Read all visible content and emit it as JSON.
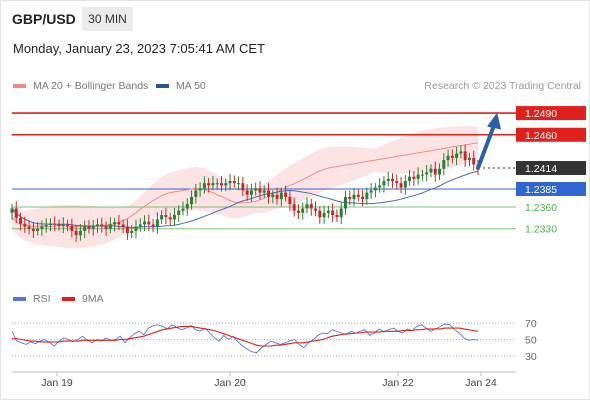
{
  "header": {
    "pair": "GBP/USD",
    "timeframe": "30 MIN",
    "datetime": "Monday, January 23, 2023 7:05:41 AM CET"
  },
  "legend": {
    "ma20": "MA 20 + Bollinger Bands",
    "ma50": "MA 50",
    "rsi": "RSI",
    "ma9": "9MA"
  },
  "credit": "Research © 2023 Trading Central",
  "colors": {
    "resistance": "#e0201c",
    "support": "#4caf50",
    "current": "#333333",
    "pivot": "#2f66d0",
    "bollinger_fill": "#fde4e4",
    "ma20": "#f08a8a",
    "ma50": "#4a69b8",
    "arrow": "#2d5fa6",
    "rsi": "#5878d6",
    "rsi_ma": "#e0201c",
    "candle_up": "#2e7d32",
    "candle_down": "#c62828"
  },
  "chart_data": [
    {
      "type": "candlestick",
      "ylim": [
        1.2266,
        1.2515
      ],
      "x_ticks": [
        "Jan 19",
        "Jan 20",
        "Jan 22",
        "Jan 24"
      ],
      "levels": [
        {
          "value": 1.249,
          "label": "1.2490",
          "kind": "resistance"
        },
        {
          "value": 1.246,
          "label": "1.2460",
          "kind": "resistance"
        },
        {
          "value": 1.2414,
          "label": "1.2414",
          "kind": "current"
        },
        {
          "value": 1.2385,
          "label": "1.2385",
          "kind": "pivot"
        },
        {
          "value": 1.236,
          "label": "1.2360",
          "kind": "support"
        },
        {
          "value": 1.233,
          "label": "1.2330",
          "kind": "support"
        }
      ],
      "close_series": [
        1.2358,
        1.2345,
        1.2337,
        1.2333,
        1.233,
        1.2327,
        1.233,
        1.2333,
        1.2335,
        1.2337,
        1.2336,
        1.2334,
        1.2336,
        1.2334,
        1.2327,
        1.2321,
        1.2327,
        1.2333,
        1.233,
        1.2333,
        1.2336,
        1.2333,
        1.233,
        1.2336,
        1.2339,
        1.2336,
        1.2333,
        1.2324,
        1.2327,
        1.2333,
        1.2336,
        1.234,
        1.2336,
        1.2333,
        1.2343,
        1.2349,
        1.2346,
        1.2343,
        1.2349,
        1.2355,
        1.2358,
        1.2364,
        1.2374,
        1.2383,
        1.2386,
        1.2393,
        1.239,
        1.2393,
        1.2393,
        1.239,
        1.2393,
        1.2396,
        1.2393,
        1.2393,
        1.2383,
        1.2377,
        1.2383,
        1.2386,
        1.238,
        1.2383,
        1.2374,
        1.2377,
        1.2371,
        1.238,
        1.2374,
        1.2364,
        1.2355,
        1.2352,
        1.2358,
        1.2364,
        1.2358,
        1.2355,
        1.2346,
        1.2352,
        1.2355,
        1.2349,
        1.2346,
        1.2358,
        1.2374,
        1.2371,
        1.2377,
        1.2374,
        1.2371,
        1.238,
        1.2383,
        1.2387,
        1.239,
        1.2396,
        1.2399,
        1.2396,
        1.2393,
        1.2387,
        1.2396,
        1.2402,
        1.2399,
        1.2405,
        1.2405,
        1.2408,
        1.2413,
        1.2405,
        1.2413,
        1.2425,
        1.2431,
        1.2428,
        1.2434,
        1.2437,
        1.2425,
        1.2428,
        1.2419,
        1.2414
      ],
      "ma20": [
        1.2346,
        1.234,
        1.2336,
        1.2334,
        1.2334,
        1.2333,
        1.2333,
        1.2334,
        1.2333,
        1.2333,
        1.2334,
        1.2334,
        1.2334,
        1.2333,
        1.2333,
        1.2333,
        1.2333,
        1.2333,
        1.2333,
        1.2333,
        1.2334,
        1.2334,
        1.2335,
        1.2336,
        1.2337,
        1.2339,
        1.2341,
        1.2344,
        1.2348,
        1.2352,
        1.2357,
        1.2361,
        1.2365,
        1.2369,
        1.2372,
        1.2376,
        1.2378,
        1.238,
        1.2381,
        1.2382,
        1.2383,
        1.2384,
        1.2385,
        1.2386,
        1.2385,
        1.2384,
        1.2382,
        1.238,
        1.2377,
        1.2375,
        1.2372,
        1.2369,
        1.2367,
        1.2366,
        1.2366,
        1.2366,
        1.2367,
        1.2368,
        1.237,
        1.2372,
        1.2375,
        1.2378,
        1.2381,
        1.2384,
        1.2387,
        1.239,
        1.2392,
        1.2395,
        1.2398,
        1.2401,
        1.2404,
        1.2407,
        1.241,
        1.2412,
        1.2414,
        1.2415,
        1.2416,
        1.2417,
        1.2418,
        1.2419,
        1.242,
        1.2421,
        1.2422,
        1.2423,
        1.2424,
        1.2425,
        1.2426,
        1.2427,
        1.2428,
        1.2429,
        1.243,
        1.2431,
        1.2432,
        1.2433,
        1.2434,
        1.2435,
        1.2436,
        1.2437,
        1.2438,
        1.2439,
        1.244,
        1.2441,
        1.2442,
        1.2443,
        1.2444,
        1.2445,
        1.2446,
        1.2447,
        1.2448,
        1.2449
      ],
      "bb_upper_fill_note": "filled band around MA 20",
      "arrow": {
        "from": [
          109,
          1.2414
        ],
        "to": [
          113,
          1.2488
        ]
      }
    },
    {
      "type": "line",
      "title": "RSI",
      "ylim": [
        20,
        80
      ],
      "y_ticks": [
        70,
        50,
        30
      ],
      "series": [
        {
          "name": "RSI",
          "values": [
            60,
            48,
            46,
            44,
            47,
            45,
            48,
            50,
            46,
            42,
            48,
            52,
            50,
            47,
            50,
            54,
            49,
            46,
            50,
            48,
            52,
            49,
            50,
            54,
            46,
            52,
            57,
            60,
            56,
            64,
            67,
            68,
            66,
            63,
            68,
            65,
            62,
            64,
            67,
            62,
            60,
            64,
            58,
            52,
            48,
            55,
            50,
            54,
            47,
            42,
            38,
            35,
            34,
            40,
            44,
            48,
            46,
            44,
            46,
            48,
            50,
            44,
            40,
            46,
            50,
            55,
            58,
            57,
            62,
            60,
            58,
            56,
            60,
            58,
            60,
            62,
            55,
            58,
            63,
            59,
            62,
            64,
            60,
            58,
            63,
            61,
            66,
            68,
            64,
            60,
            63,
            66,
            69,
            68,
            62,
            58,
            52,
            49,
            50,
            49
          ]
        },
        {
          "name": "9MA",
          "values": [
            51,
            51,
            50,
            49,
            48,
            48,
            47,
            47,
            47,
            47,
            47,
            48,
            48,
            48,
            48,
            49,
            49,
            49,
            49,
            49,
            49,
            49,
            49,
            50,
            50,
            51,
            52,
            53,
            54,
            56,
            58,
            60,
            62,
            63,
            64,
            65,
            66,
            66,
            66,
            65,
            64,
            63,
            62,
            61,
            59,
            57,
            55,
            53,
            51,
            49,
            47,
            45,
            43,
            42,
            42,
            42,
            43,
            43,
            44,
            45,
            46,
            46,
            46,
            47,
            48,
            49,
            50,
            52,
            54,
            55,
            56,
            57,
            57,
            58,
            58,
            59,
            59,
            59,
            59,
            60,
            60,
            60,
            60,
            61,
            61,
            61,
            62,
            62,
            63,
            63,
            63,
            63,
            64,
            64,
            64,
            64,
            63,
            62,
            61,
            60
          ]
        }
      ]
    }
  ]
}
